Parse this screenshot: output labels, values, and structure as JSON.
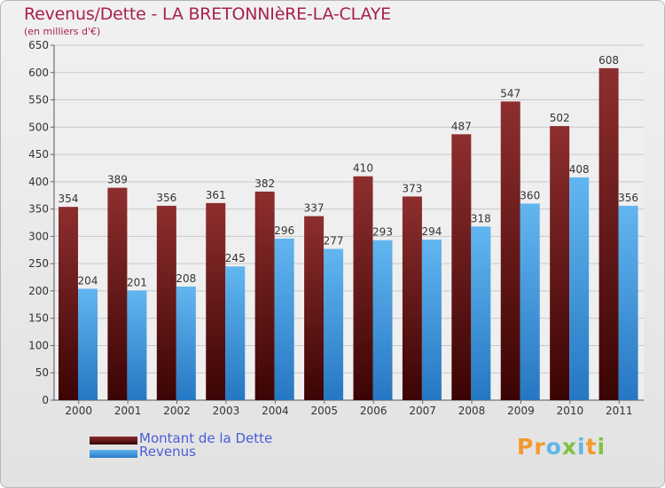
{
  "chart_data": {
    "type": "bar",
    "title": "Revenus/Dette - LA BRETONNIèRE-LA-CLAYE",
    "subtitle": "(en milliers d'€)",
    "categories": [
      "2000",
      "2001",
      "2002",
      "2003",
      "2004",
      "2005",
      "2006",
      "2007",
      "2008",
      "2009",
      "2010",
      "2011"
    ],
    "series": [
      {
        "name": "Montant de la Dette",
        "color": "#7a1c1c",
        "values": [
          354,
          389,
          356,
          361,
          382,
          337,
          410,
          373,
          487,
          547,
          502,
          608
        ]
      },
      {
        "name": "Revenus",
        "color": "#4ca3e6",
        "values": [
          204,
          201,
          208,
          245,
          296,
          277,
          293,
          294,
          318,
          360,
          408,
          356
        ]
      }
    ],
    "ylim": [
      0,
      650
    ],
    "yticks": [
      0,
      50,
      100,
      150,
      200,
      250,
      300,
      350,
      400,
      450,
      500,
      550,
      600,
      650
    ],
    "grid": true,
    "legend": "bottom-left"
  },
  "logo": {
    "text": "Proxiti",
    "letters": [
      {
        "ch": "P",
        "color": "#f29a2e"
      },
      {
        "ch": "r",
        "color": "#f29a2e"
      },
      {
        "ch": "o",
        "color": "#5db7e8"
      },
      {
        "ch": "x",
        "color": "#7fc242"
      },
      {
        "ch": "i",
        "color": "#5db7e8"
      },
      {
        "ch": "t",
        "color": "#f29a2e"
      },
      {
        "ch": "i",
        "color": "#7fc242"
      }
    ]
  }
}
